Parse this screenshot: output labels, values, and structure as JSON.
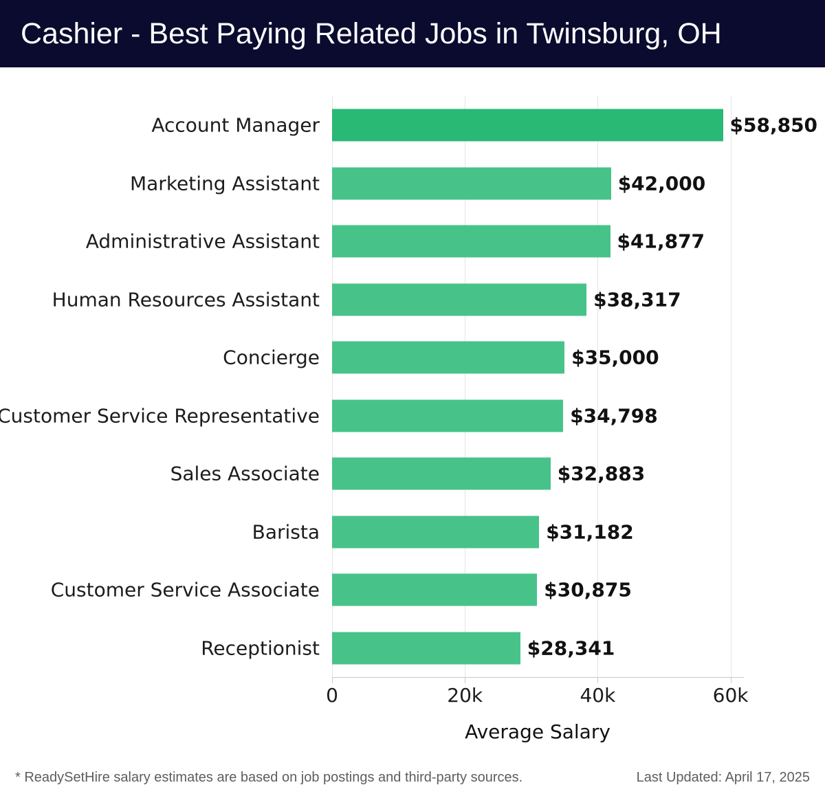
{
  "header": {
    "title": "Cashier - Best Paying Related Jobs in Twinsburg, OH"
  },
  "colors": {
    "header_bg": "#0b0b2f",
    "bar_highlight": "#2ab875",
    "bar_default": "#47c38a",
    "gridline": "#e4e4e4",
    "axis_line": "#c9c9c9"
  },
  "chart_data": {
    "type": "bar",
    "orientation": "horizontal",
    "categories": [
      "Account Manager",
      "Marketing Assistant",
      "Administrative Assistant",
      "Human Resources Assistant",
      "Concierge",
      "Customer Service Representative",
      "Sales Associate",
      "Barista",
      "Customer Service Associate",
      "Receptionist"
    ],
    "values": [
      58850,
      42000,
      41877,
      38317,
      35000,
      34798,
      32883,
      31182,
      30875,
      28341
    ],
    "value_labels": [
      "$58,850",
      "$42,000",
      "$41,877",
      "$38,317",
      "$35,000",
      "$34,798",
      "$32,883",
      "$31,182",
      "$30,875",
      "$28,341"
    ],
    "highlight_index": 0,
    "xlabel": "Average Salary",
    "xlim": [
      0,
      61800
    ],
    "xticks": [
      {
        "value": 0,
        "label": "0"
      },
      {
        "value": 20000,
        "label": "20k"
      },
      {
        "value": 40000,
        "label": "40k"
      },
      {
        "value": 60000,
        "label": "60k"
      }
    ],
    "grid": true,
    "legend": false
  },
  "footer": {
    "disclaimer": "* ReadySetHire salary estimates are based on job postings and third-party sources.",
    "last_updated": "Last Updated: April 17, 2025"
  }
}
